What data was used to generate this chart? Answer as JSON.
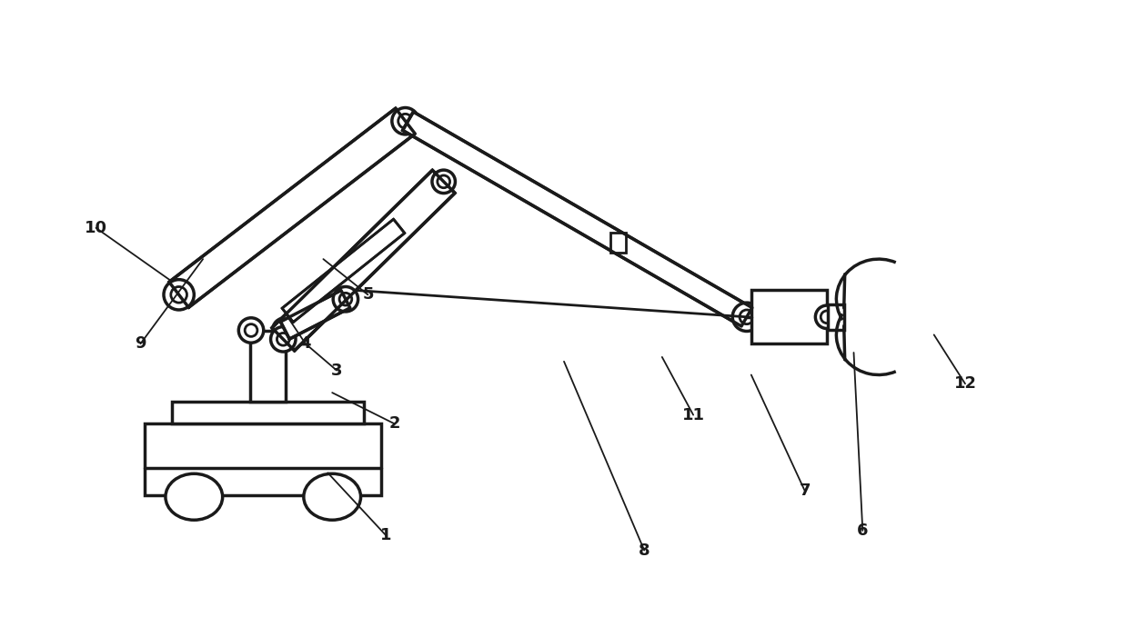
{
  "bg_color": "#ffffff",
  "line_color": "#1a1a1a",
  "lw": 2.0,
  "lw_thick": 2.5,
  "fig_width": 12.4,
  "fig_height": 6.79,
  "label_data": [
    [
      "1",
      [
        4.2,
        0.85
      ],
      [
        3.55,
        1.55
      ]
    ],
    [
      "2",
      [
        4.3,
        2.1
      ],
      [
        3.6,
        2.45
      ]
    ],
    [
      "3",
      [
        3.65,
        2.7
      ],
      [
        3.3,
        3.0
      ]
    ],
    [
      "4",
      [
        3.3,
        3.0
      ],
      [
        3.1,
        3.3
      ]
    ],
    [
      "5",
      [
        4.0,
        3.55
      ],
      [
        3.5,
        3.95
      ]
    ],
    [
      "6",
      [
        9.55,
        0.9
      ],
      [
        9.45,
        2.9
      ]
    ],
    [
      "7",
      [
        8.9,
        1.35
      ],
      [
        8.3,
        2.65
      ]
    ],
    [
      "8",
      [
        7.1,
        0.68
      ],
      [
        6.2,
        2.8
      ]
    ],
    [
      "9",
      [
        1.45,
        3.0
      ],
      [
        2.15,
        3.95
      ]
    ],
    [
      "10",
      [
        0.95,
        4.3
      ],
      [
        1.8,
        3.7
      ]
    ],
    [
      "11",
      [
        7.65,
        2.2
      ],
      [
        7.3,
        2.85
      ]
    ],
    [
      "12",
      [
        10.7,
        2.55
      ],
      [
        10.35,
        3.1
      ]
    ]
  ]
}
